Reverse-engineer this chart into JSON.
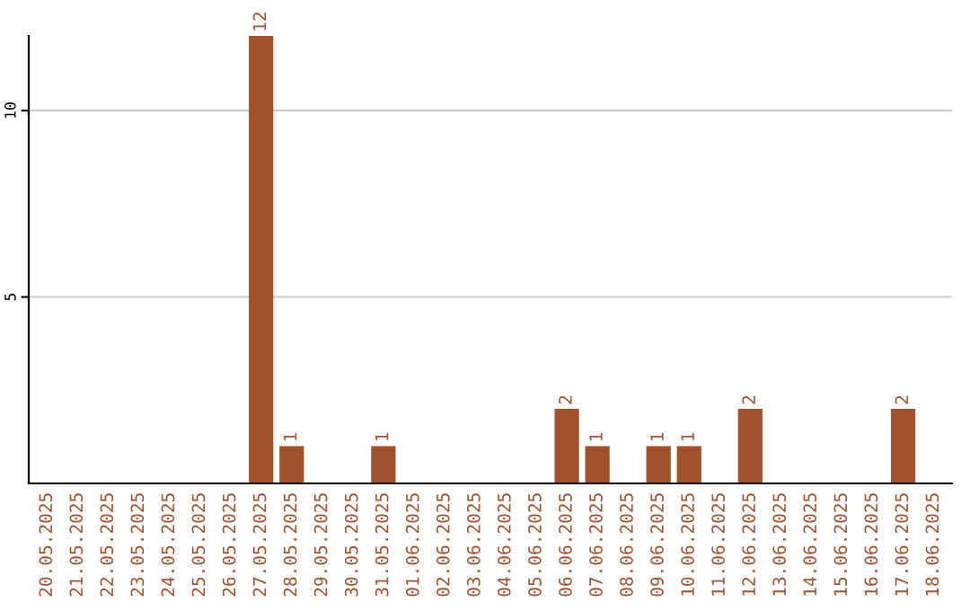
{
  "chart_data": {
    "type": "bar",
    "categories": [
      "20.05.2025",
      "21.05.2025",
      "22.05.2025",
      "23.05.2025",
      "24.05.2025",
      "25.05.2025",
      "26.05.2025",
      "27.05.2025",
      "28.05.2025",
      "29.05.2025",
      "30.05.2025",
      "31.05.2025",
      "01.06.2025",
      "02.06.2025",
      "03.06.2025",
      "04.06.2025",
      "05.06.2025",
      "06.06.2025",
      "07.06.2025",
      "08.06.2025",
      "09.06.2025",
      "10.06.2025",
      "11.06.2025",
      "12.06.2025",
      "13.06.2025",
      "14.06.2025",
      "15.06.2025",
      "16.06.2025",
      "17.06.2025",
      "18.06.2025"
    ],
    "values": [
      0,
      0,
      0,
      0,
      0,
      0,
      0,
      12,
      1,
      0,
      0,
      1,
      0,
      0,
      0,
      0,
      0,
      2,
      1,
      0,
      1,
      1,
      0,
      2,
      0,
      0,
      0,
      0,
      2,
      0
    ],
    "value_labels": [
      null,
      null,
      null,
      null,
      null,
      null,
      null,
      "12",
      "1",
      null,
      null,
      "1",
      null,
      null,
      null,
      null,
      null,
      "2",
      "1",
      null,
      "1",
      "1",
      null,
      "2",
      null,
      null,
      null,
      null,
      "2",
      null
    ],
    "color": "#a0522d",
    "ylim": [
      0,
      12
    ],
    "yticks": [
      5,
      10
    ],
    "grid": "y",
    "legend": false
  }
}
